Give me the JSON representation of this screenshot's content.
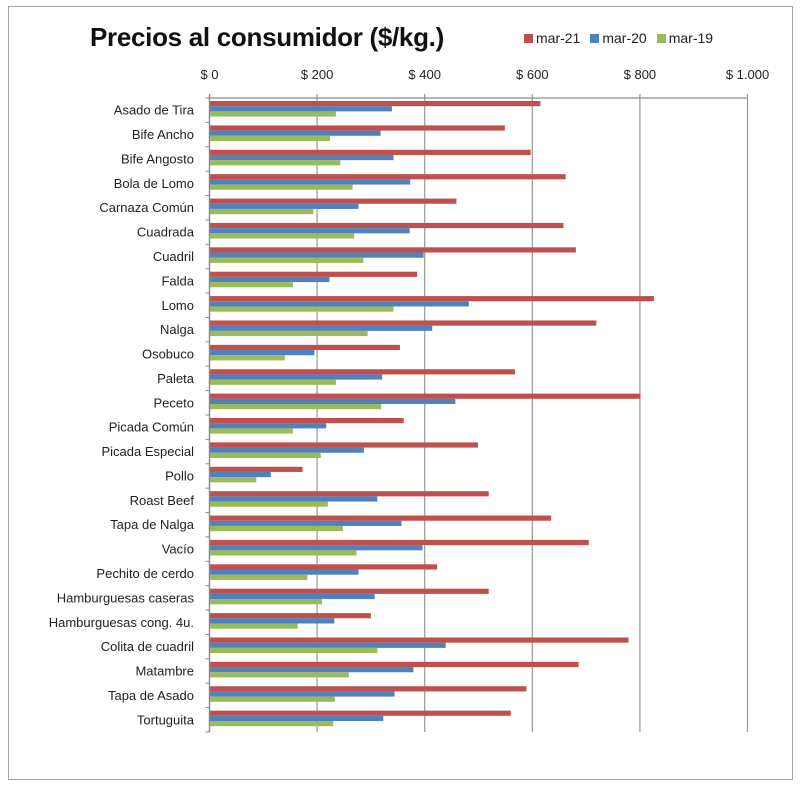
{
  "chart_data": {
    "type": "bar",
    "orientation": "horizontal",
    "title": "Precios al consumidor ($/kg.)",
    "xlabel": "",
    "ylabel": "",
    "xlim": [
      0,
      1000
    ],
    "x_ticks": [
      0,
      200,
      400,
      600,
      800,
      1000
    ],
    "x_tick_labels": [
      "$ 0",
      "$ 200",
      "$ 400",
      "$ 600",
      "$ 800",
      "$ 1.000"
    ],
    "x_axis_position": "top",
    "grid": true,
    "legend_position": "top-right",
    "categories": [
      "Asado de Tira",
      "Bife Ancho",
      "Bife Angosto",
      "Bola de Lomo",
      "Carnaza Común",
      "Cuadrada",
      "Cuadril",
      "Falda",
      "Lomo",
      "Nalga",
      "Osobuco",
      "Paleta",
      "Peceto",
      "Picada Común",
      "Picada Especial",
      "Pollo",
      "Roast Beef",
      "Tapa de Nalga",
      "Vacío",
      "Pechito de cerdo",
      "Hamburguesas caseras",
      "Hamburguesas cong. 4u.",
      "Colita de cuadril",
      "Matambre",
      "Tapa de Asado",
      "Tortuguita"
    ],
    "series": [
      {
        "name": "mar-21",
        "color": "#C0504D",
        "values": [
          615,
          549,
          597,
          662,
          459,
          658,
          681,
          386,
          826,
          719,
          354,
          568,
          801,
          361,
          499,
          173,
          519,
          635,
          705,
          423,
          519,
          300,
          779,
          686,
          589,
          560
        ]
      },
      {
        "name": "mar-20",
        "color": "#4F81BD",
        "values": [
          339,
          318,
          342,
          373,
          277,
          372,
          398,
          223,
          482,
          414,
          195,
          321,
          457,
          217,
          287,
          114,
          312,
          357,
          396,
          277,
          307,
          232,
          439,
          379,
          344,
          323
        ]
      },
      {
        "name": "mar-19",
        "color": "#9BBB59",
        "values": [
          235,
          224,
          243,
          266,
          193,
          269,
          286,
          155,
          342,
          294,
          140,
          235,
          319,
          155,
          207,
          87,
          220,
          248,
          273,
          182,
          209,
          164,
          312,
          259,
          233,
          230
        ]
      }
    ]
  },
  "colors": {
    "gridline": "#a0a0a0",
    "axis": "#8c8c8c",
    "frame": "#a6a6a6"
  }
}
